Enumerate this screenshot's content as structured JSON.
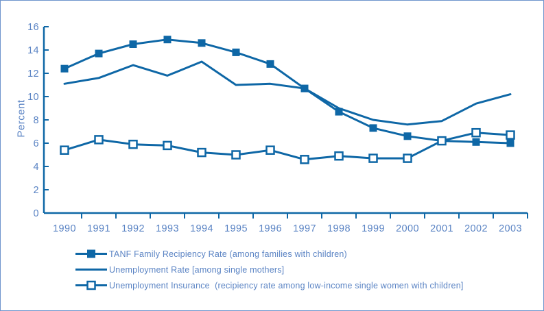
{
  "figure": {
    "colors": {
      "accent": "#0E67A6",
      "label": "#5B84C4",
      "border": "#6E94CC",
      "background": "#FFFFFF"
    }
  },
  "chart_data": {
    "type": "line",
    "title": "",
    "categories": [
      "1990",
      "1991",
      "1992",
      "1993",
      "1994",
      "1995",
      "1996",
      "1997",
      "1998",
      "1999",
      "2000",
      "2001",
      "2002",
      "2003"
    ],
    "series": [
      {
        "name": "TANF Family Recipiency Rate (among families with children)",
        "marker": "filled-square",
        "values": [
          12.4,
          13.7,
          14.5,
          14.9,
          14.6,
          13.8,
          12.8,
          10.7,
          8.7,
          7.3,
          6.6,
          6.2,
          6.1,
          6.0
        ]
      },
      {
        "name": "Unemployment Rate [among single mothers]",
        "marker": "none",
        "values": [
          11.1,
          11.6,
          12.7,
          11.8,
          13.0,
          11.0,
          11.1,
          10.7,
          9.0,
          8.0,
          7.6,
          7.9,
          9.4,
          10.2
        ]
      },
      {
        "name": "Unemployment Insurance  (recipiency rate among low-income single women with children]",
        "marker": "open-square",
        "values": [
          5.4,
          6.3,
          5.9,
          5.8,
          5.2,
          5.0,
          5.4,
          4.6,
          4.9,
          4.7,
          4.7,
          6.2,
          6.9,
          6.7
        ]
      }
    ],
    "xlabel": "",
    "ylabel": "Percent",
    "ylim": [
      0,
      16
    ],
    "ytick_step": 2,
    "grid": false,
    "legend_position": "bottom-left"
  }
}
